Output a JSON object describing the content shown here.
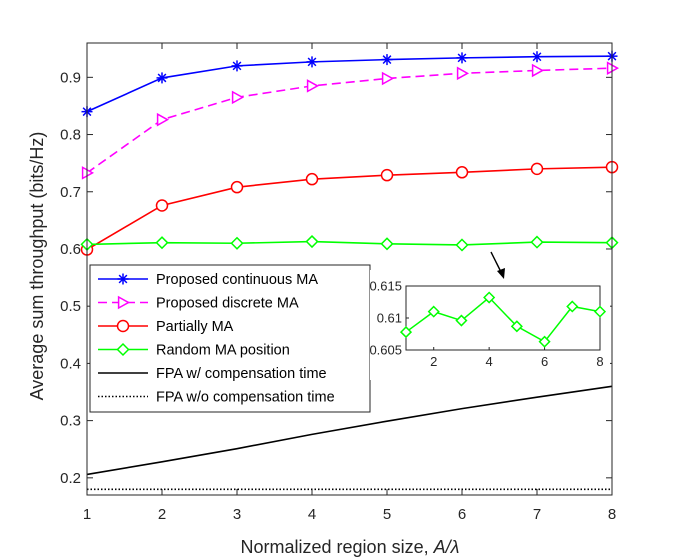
{
  "chart_data": {
    "type": "line",
    "title": "",
    "xlabel": "Normalized region size, A/λ",
    "xlabel_plain": "Normalized region size, ",
    "xlabel_italic": "A/λ",
    "ylabel": "Average sum throughput (bits/Hz)",
    "x": [
      1,
      2,
      3,
      4,
      5,
      6,
      7,
      8
    ],
    "xlim": [
      1,
      8
    ],
    "ylim": [
      0.17,
      0.96
    ],
    "xticks": [
      "1",
      "2",
      "3",
      "4",
      "5",
      "6",
      "7",
      "8"
    ],
    "yticks": [
      "0.2",
      "0.3",
      "0.4",
      "0.5",
      "0.6",
      "0.7",
      "0.8",
      "0.9"
    ],
    "legend_position": "middle-left",
    "series": [
      {
        "name": "Proposed continuous MA",
        "color": "#0000ff",
        "dash": "solid",
        "marker": "asterisk",
        "values": [
          0.84,
          0.899,
          0.92,
          0.927,
          0.931,
          0.934,
          0.936,
          0.937
        ]
      },
      {
        "name": "Proposed discrete MA",
        "color": "#ff00ff",
        "dash": "dashed",
        "marker": "triangle-right",
        "values": [
          0.733,
          0.826,
          0.865,
          0.885,
          0.898,
          0.907,
          0.912,
          0.916
        ]
      },
      {
        "name": "Partially MA",
        "color": "#ff0000",
        "dash": "solid",
        "marker": "circle",
        "values": [
          0.599,
          0.676,
          0.708,
          0.722,
          0.729,
          0.734,
          0.74,
          0.743
        ]
      },
      {
        "name": "Random MA position",
        "color": "#00ff00",
        "dash": "solid",
        "marker": "diamond",
        "values": [
          0.608,
          0.611,
          0.61,
          0.613,
          0.609,
          0.607,
          0.612,
          0.611
        ]
      },
      {
        "name": "FPA w/ compensation time",
        "color": "#000000",
        "dash": "solid",
        "marker": "none",
        "values": [
          0.206,
          0.228,
          0.251,
          0.276,
          0.299,
          0.321,
          0.341,
          0.36
        ]
      },
      {
        "name": "FPA w/o compensation time",
        "color": "#000000",
        "dash": "dotted",
        "marker": "none",
        "values": [
          0.18,
          0.18,
          0.18,
          0.18,
          0.18,
          0.18,
          0.18,
          0.18
        ]
      }
    ],
    "inset": {
      "series_name": "Random MA position",
      "x": [
        1,
        2,
        3,
        4,
        5,
        6,
        7,
        8
      ],
      "values": [
        0.6078,
        0.611,
        0.6096,
        0.6132,
        0.6087,
        0.6063,
        0.6118,
        0.611
      ],
      "xlim": [
        1,
        8
      ],
      "ylim": [
        0.605,
        0.615
      ],
      "xticks": [
        "2",
        "4",
        "6",
        "8"
      ],
      "yticks": [
        "0.605",
        "0.61",
        "0.615"
      ]
    }
  }
}
